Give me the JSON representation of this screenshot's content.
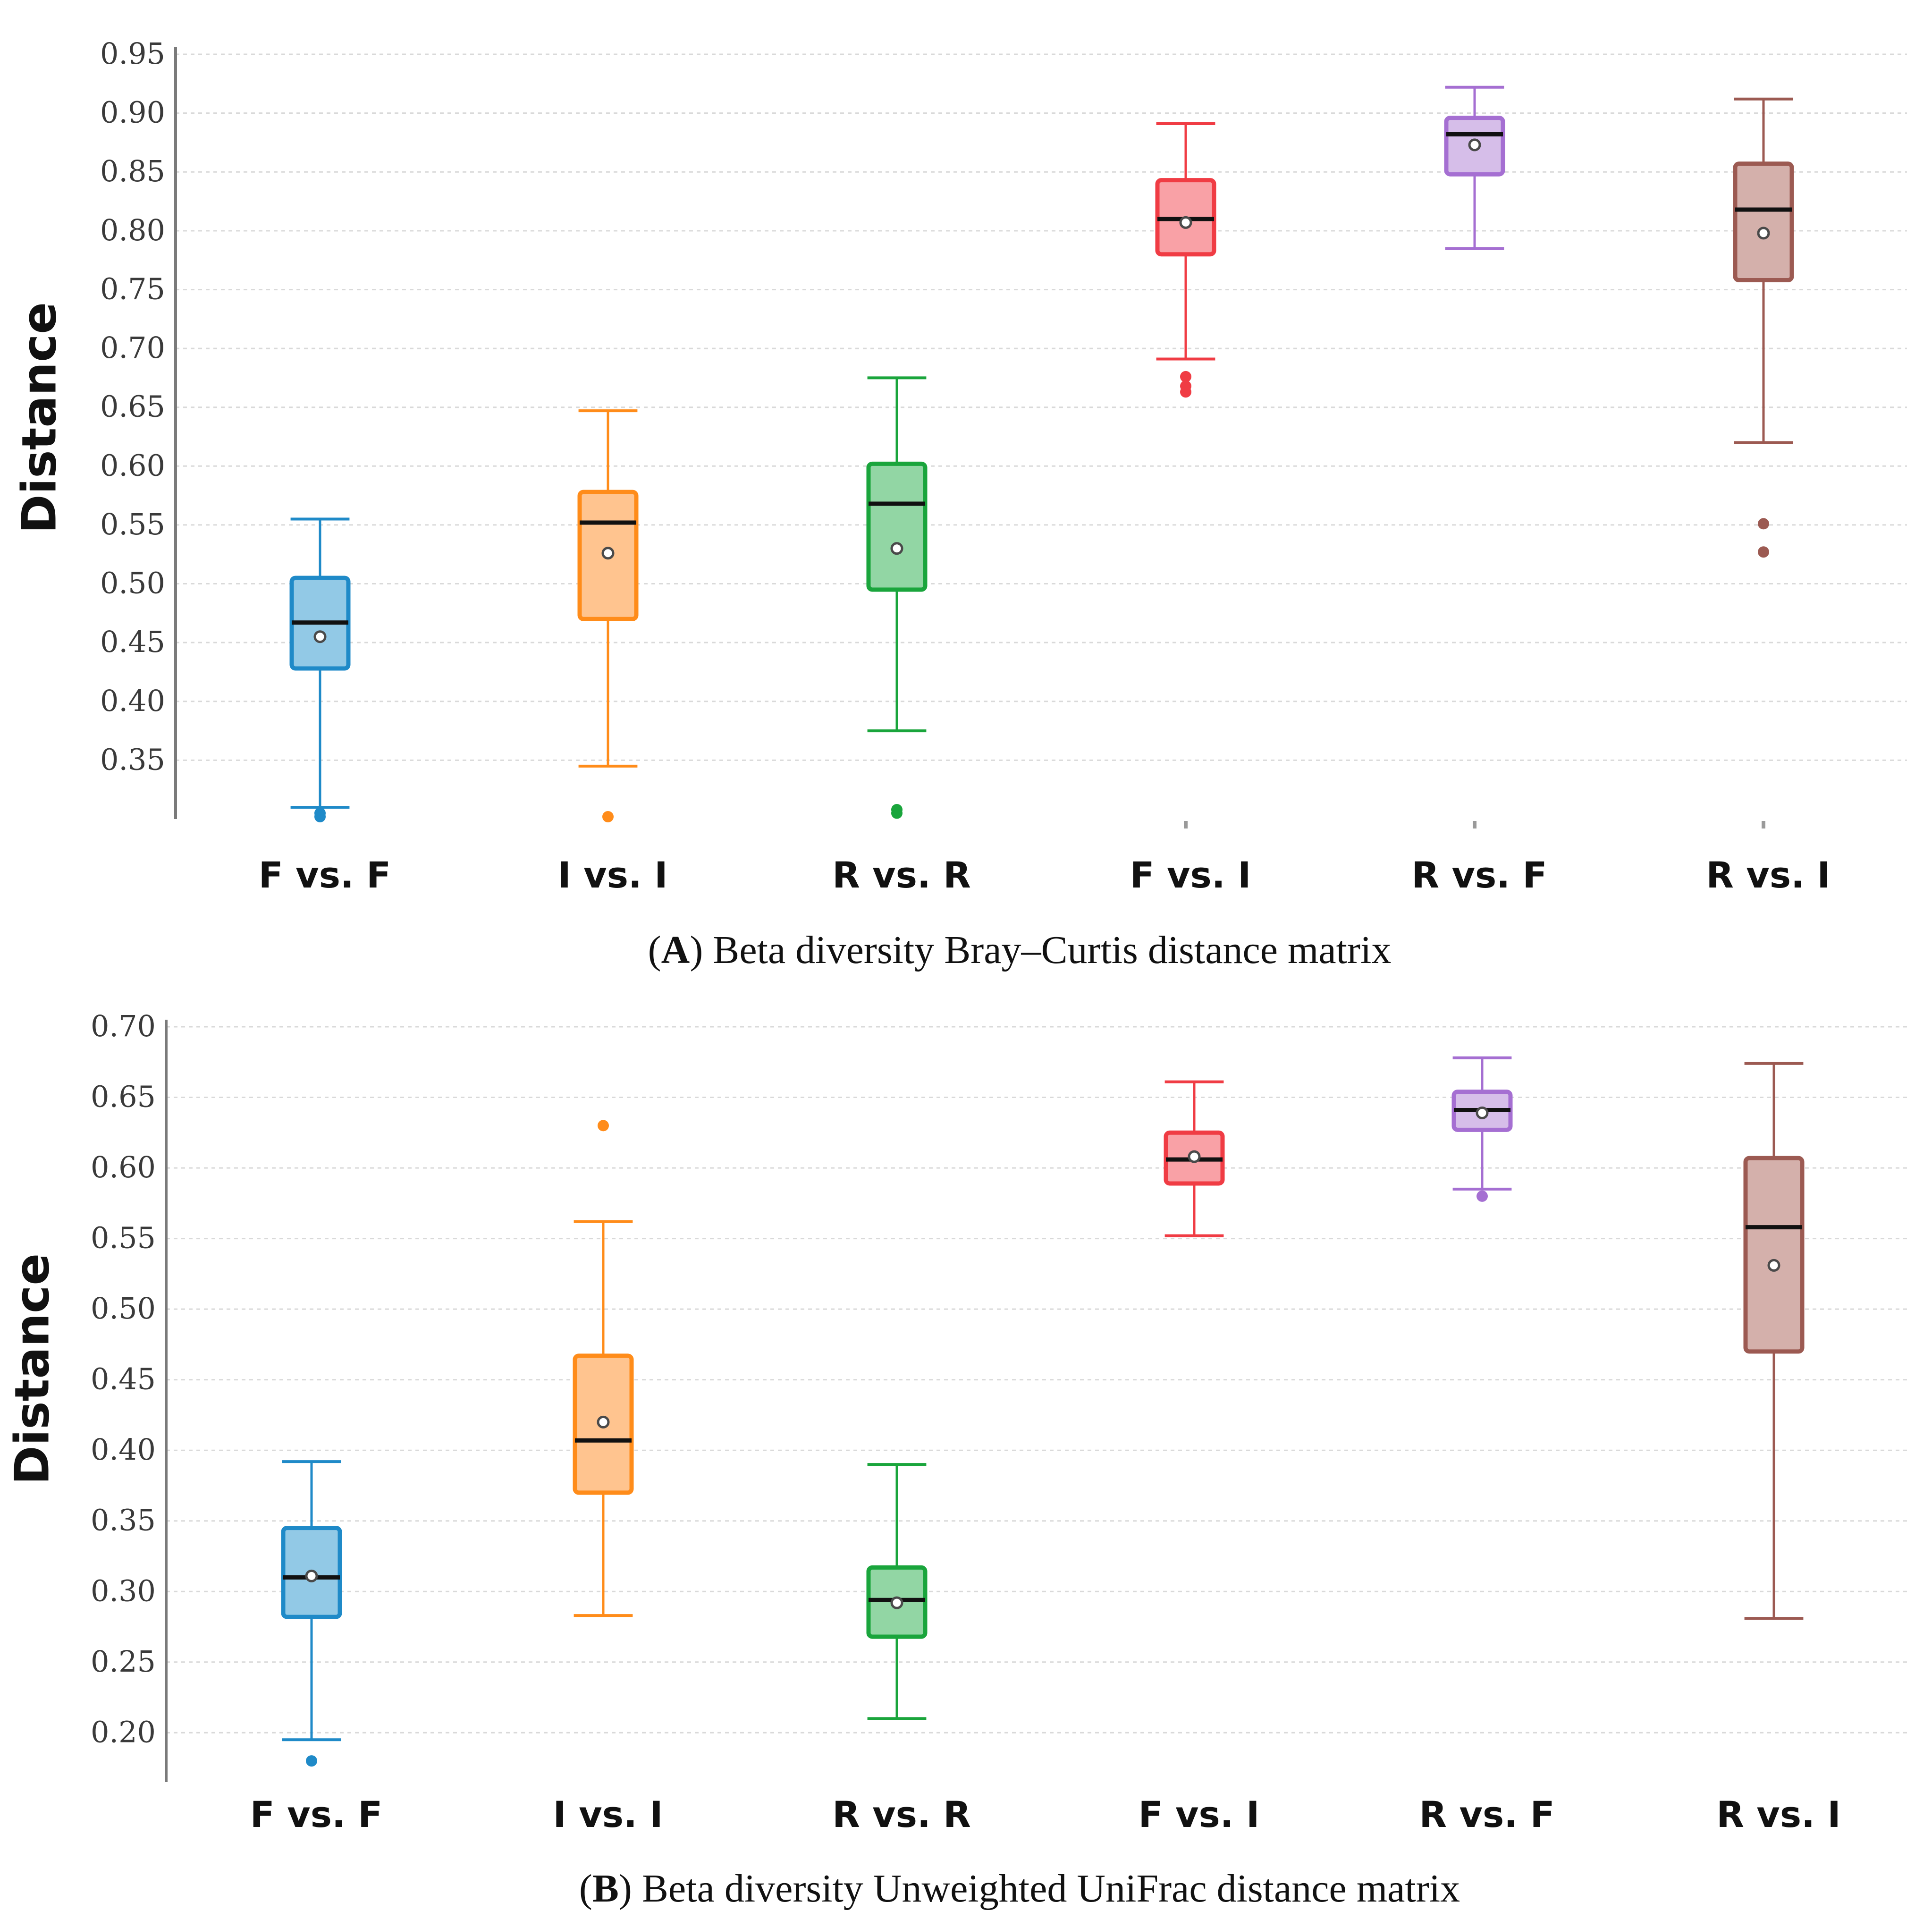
{
  "chart_data": [
    {
      "type": "box",
      "caption_letter": "A",
      "caption_text": "Beta diversity Bray–Curtis distance matrix",
      "ylabel": "Distance",
      "xlabel": "",
      "ylim": [
        0.3,
        0.95
      ],
      "yticks": [
        "0.35",
        "0.40",
        "0.45",
        "0.50",
        "0.55",
        "0.60",
        "0.65",
        "0.70",
        "0.75",
        "0.80",
        "0.85",
        "0.90",
        "0.95"
      ],
      "grid": true,
      "categories": [
        "F vs. F",
        "I vs. I",
        "R vs. R",
        "F vs. I",
        "R vs. F",
        "R vs. I"
      ],
      "colors": [
        "#1f8ac8",
        "#ff8c1a",
        "#1aa53c",
        "#f03c44",
        "#a56fd2",
        "#9c5a52"
      ],
      "fills": [
        "#92c9e6",
        "#ffc48f",
        "#92d6a4",
        "#f9a1a6",
        "#d6bee9",
        "#d4b0ab"
      ],
      "boxes": [
        {
          "whisker_low": 0.31,
          "q1": 0.428,
          "median": 0.467,
          "q3": 0.505,
          "whisker_high": 0.555,
          "mean": 0.455,
          "outliers": [
            0.302,
            0.305
          ]
        },
        {
          "whisker_low": 0.345,
          "q1": 0.47,
          "median": 0.552,
          "q3": 0.578,
          "whisker_high": 0.647,
          "mean": 0.526,
          "outliers": [
            0.302
          ]
        },
        {
          "whisker_low": 0.375,
          "q1": 0.495,
          "median": 0.568,
          "q3": 0.602,
          "whisker_high": 0.675,
          "mean": 0.53,
          "outliers": [
            0.305,
            0.308
          ]
        },
        {
          "whisker_low": 0.691,
          "q1": 0.78,
          "median": 0.81,
          "q3": 0.843,
          "whisker_high": 0.891,
          "mean": 0.807,
          "outliers": [
            0.663,
            0.668,
            0.676
          ]
        },
        {
          "whisker_low": 0.785,
          "q1": 0.848,
          "median": 0.882,
          "q3": 0.896,
          "whisker_high": 0.922,
          "mean": 0.873,
          "outliers": []
        },
        {
          "whisker_low": 0.62,
          "q1": 0.758,
          "median": 0.818,
          "q3": 0.857,
          "whisker_high": 0.912,
          "mean": 0.798,
          "outliers": [
            0.527,
            0.551
          ]
        }
      ]
    },
    {
      "type": "box",
      "caption_letter": "B",
      "caption_text": "Beta diversity Unweighted UniFrac distance matrix",
      "ylabel": "Distance",
      "xlabel": "",
      "ylim": [
        0.165,
        0.7
      ],
      "yticks": [
        "0.20",
        "0.25",
        "0.30",
        "0.35",
        "0.40",
        "0.45",
        "0.50",
        "0.55",
        "0.60",
        "0.65",
        "0.70"
      ],
      "grid": true,
      "categories": [
        "F vs. F",
        "I vs. I",
        "R vs. R",
        "F vs. I",
        "R vs. F",
        "R vs. I"
      ],
      "colors": [
        "#1f8ac8",
        "#ff8c1a",
        "#1aa53c",
        "#f03c44",
        "#a56fd2",
        "#9c5a52"
      ],
      "fills": [
        "#92c9e6",
        "#ffc48f",
        "#92d6a4",
        "#f9a1a6",
        "#d6bee9",
        "#d4b0ab"
      ],
      "boxes": [
        {
          "whisker_low": 0.195,
          "q1": 0.282,
          "median": 0.31,
          "q3": 0.345,
          "whisker_high": 0.392,
          "mean": 0.311,
          "outliers": [
            0.18
          ]
        },
        {
          "whisker_low": 0.283,
          "q1": 0.37,
          "median": 0.407,
          "q3": 0.467,
          "whisker_high": 0.562,
          "mean": 0.42,
          "outliers": [
            0.63
          ]
        },
        {
          "whisker_low": 0.21,
          "q1": 0.268,
          "median": 0.294,
          "q3": 0.317,
          "whisker_high": 0.39,
          "mean": 0.292,
          "outliers": []
        },
        {
          "whisker_low": 0.552,
          "q1": 0.589,
          "median": 0.606,
          "q3": 0.625,
          "whisker_high": 0.661,
          "mean": 0.608,
          "outliers": []
        },
        {
          "whisker_low": 0.585,
          "q1": 0.627,
          "median": 0.641,
          "q3": 0.654,
          "whisker_high": 0.678,
          "mean": 0.639,
          "outliers": [
            0.58
          ]
        },
        {
          "whisker_low": 0.281,
          "q1": 0.47,
          "median": 0.558,
          "q3": 0.607,
          "whisker_high": 0.674,
          "mean": 0.531,
          "outliers": []
        }
      ]
    }
  ]
}
